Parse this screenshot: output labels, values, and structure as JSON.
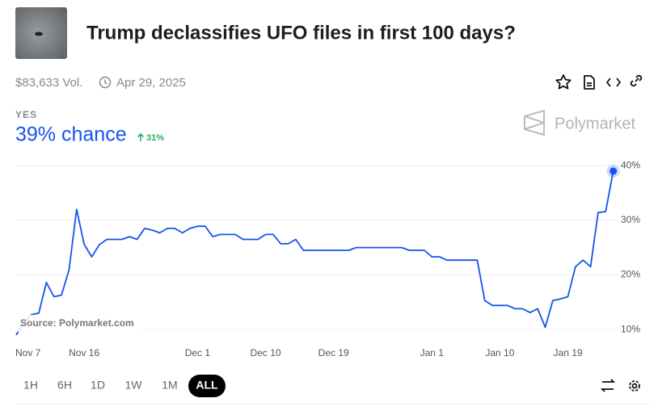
{
  "header": {
    "title": "Trump declassifies UFO files in first 100 days?",
    "volume": "$83,633 Vol.",
    "date": "Apr 29, 2025",
    "outcome": "YES",
    "chance": "39% chance",
    "change": "31%",
    "brand": "Polymarket"
  },
  "chart_data": {
    "type": "line",
    "source": "Source: Polymarket.com",
    "color": "#1652f0",
    "categories": [
      "Nov 7",
      null,
      null,
      null,
      null,
      null,
      null,
      null,
      null,
      "Nov 16",
      null,
      null,
      null,
      null,
      null,
      null,
      null,
      null,
      null,
      null,
      null,
      null,
      null,
      null,
      "Dec 1",
      null,
      null,
      null,
      null,
      null,
      null,
      null,
      null,
      "Dec 10",
      null,
      null,
      null,
      null,
      null,
      null,
      null,
      null,
      "Dec 19",
      null,
      null,
      null,
      null,
      null,
      null,
      null,
      null,
      null,
      null,
      null,
      null,
      "Jan 1",
      null,
      null,
      null,
      null,
      null,
      null,
      null,
      null,
      "Jan 10",
      null,
      null,
      null,
      null,
      null,
      null,
      null,
      null,
      "Jan 19",
      null,
      null,
      null,
      null,
      null,
      null
    ],
    "values": [
      9,
      11.2,
      12.7,
      13,
      18.6,
      16,
      16.3,
      21,
      32,
      25.6,
      23.3,
      25.5,
      26.5,
      26.5,
      26.5,
      27,
      26.5,
      28.5,
      28.2,
      27.7,
      28.5,
      28.5,
      27.7,
      28.5,
      28.9,
      28.9,
      27,
      27.4,
      27.4,
      27.4,
      26.5,
      26.5,
      26.5,
      27.4,
      27.4,
      25.7,
      25.7,
      26.5,
      24.5,
      24.5,
      24.5,
      24.5,
      24.5,
      24.5,
      24.5,
      25,
      25,
      25,
      25,
      25,
      25,
      25,
      24.5,
      24.5,
      24.5,
      23.3,
      23.3,
      22.7,
      22.7,
      22.7,
      22.7,
      22.7,
      15.3,
      14.4,
      14.4,
      14.4,
      13.8,
      13.8,
      13.1,
      13.8,
      10.4,
      15.3,
      15.6,
      16,
      21.5,
      22.7,
      21.5,
      31.4,
      31.6,
      39
    ],
    "ylim": [
      7.5,
      41.5
    ],
    "yticks": [
      {
        "value": 10,
        "label": "10%"
      },
      {
        "value": 20,
        "label": "20%"
      },
      {
        "value": 30,
        "label": "30%"
      },
      {
        "value": 40,
        "label": "40%"
      }
    ],
    "grid": true
  },
  "controls": {
    "ranges": [
      "1H",
      "6H",
      "1D",
      "1W",
      "1M",
      "ALL"
    ],
    "active": 5
  }
}
